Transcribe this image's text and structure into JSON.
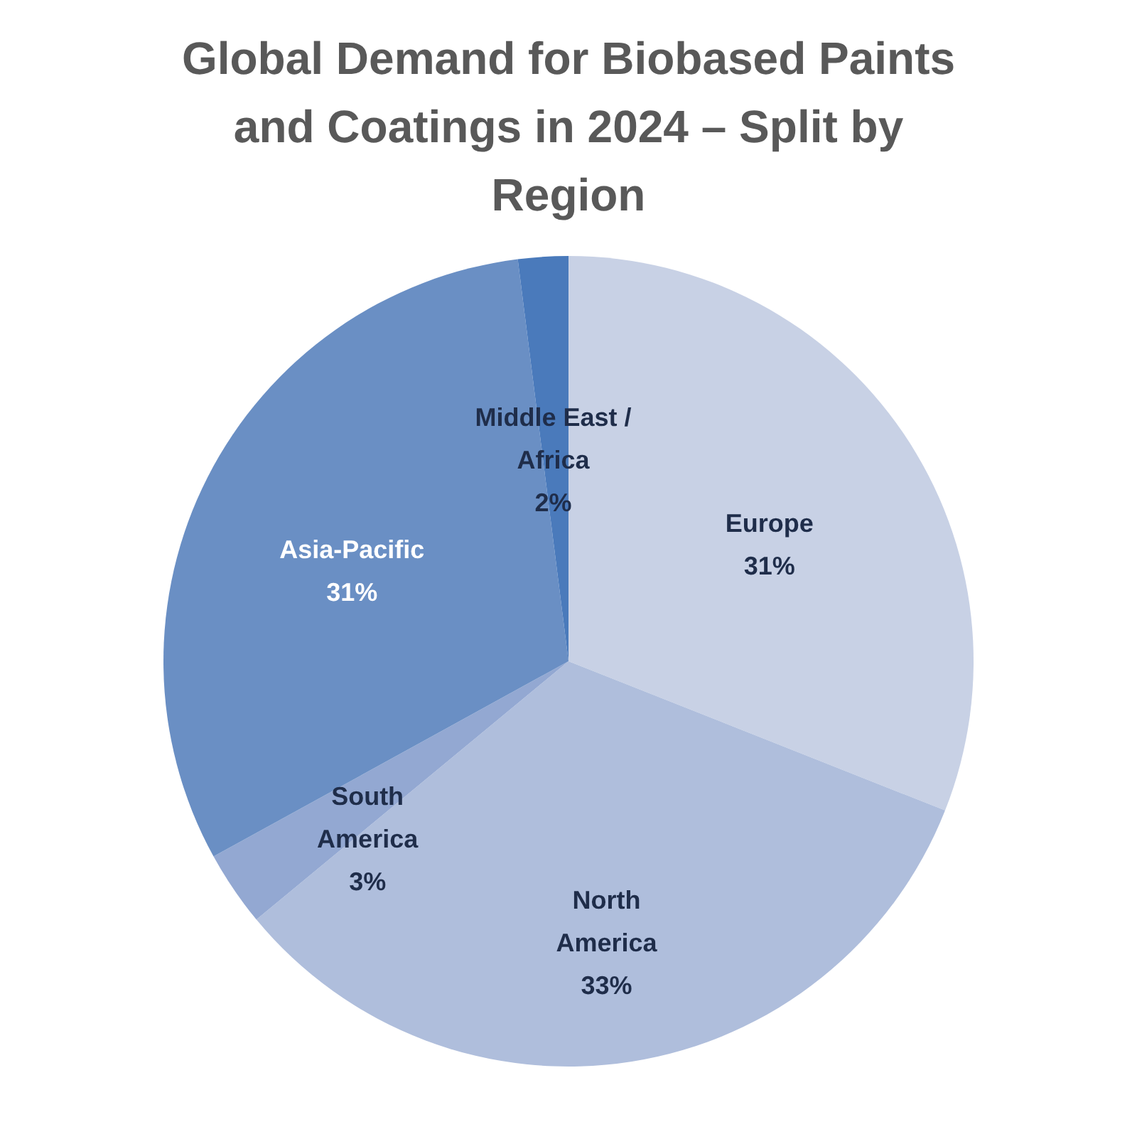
{
  "chart_data": {
    "type": "pie",
    "title": "Global Demand for Biobased Paints and Coatings in 2024 – Split by Region",
    "categories": [
      "Europe",
      "North America",
      "South America",
      "Asia-Pacific",
      "Middle East / Africa"
    ],
    "values": [
      31,
      33,
      3,
      31,
      2
    ],
    "colors": [
      "#c8d1e5",
      "#afbedc",
      "#93a8d2",
      "#6a8fc4",
      "#4a7abb"
    ],
    "value_labels": [
      "31%",
      "33%",
      "3%",
      "31%",
      "2%"
    ]
  }
}
